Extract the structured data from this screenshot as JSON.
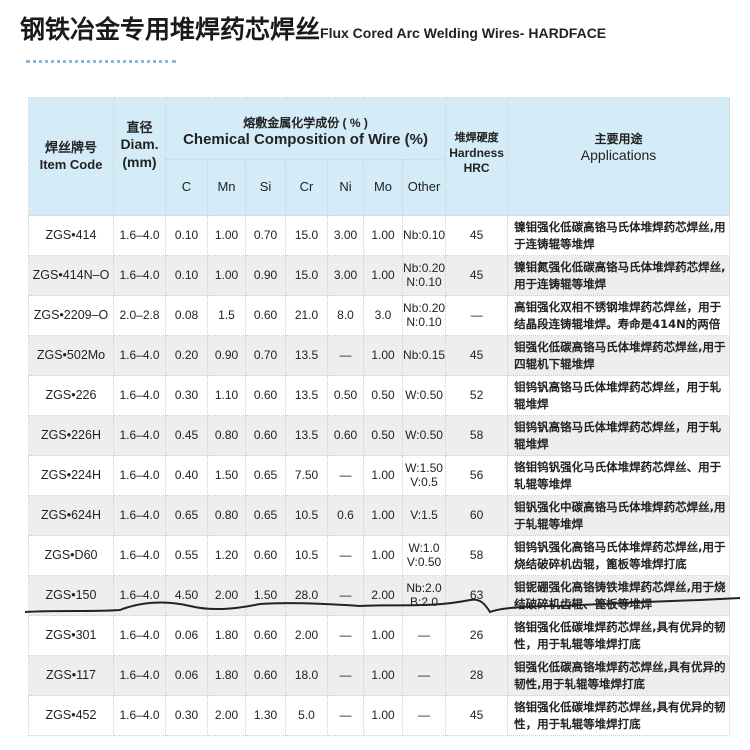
{
  "title": {
    "zh": "钢铁冶金专用堆焊药芯焊丝",
    "en": "Flux Cored Arc Welding Wires- HARDFACE"
  },
  "header": {
    "item_code_zh": "焊丝牌号",
    "item_code_en": "Item Code",
    "diam_zh": "直径",
    "diam_en": "Diam.",
    "diam_unit": "(mm)",
    "comp_zh": "熔敷金属化学成份 ( % )",
    "comp_en": "Chemical Composition of Wire (%)",
    "elements": [
      "C",
      "Mn",
      "Si",
      "Cr",
      "Ni",
      "Mo",
      "Other"
    ],
    "hardness_zh": "堆焊硬度",
    "hardness_en": "Hardness",
    "hardness_unit": "HRC",
    "app_zh": "主要用途",
    "app_en": "Applications"
  },
  "rows": [
    {
      "code": "ZGS•414",
      "diam": "1.6–4.0",
      "comp": [
        "0.10",
        "1.00",
        "0.70",
        "15.0",
        "3.00",
        "1.00",
        "Nb:0.10"
      ],
      "hrc": "45",
      "app": "镍钼强化低碳高铬马氏体堆焊药芯焊丝,用于连铸辊等堆焊"
    },
    {
      "code": "ZGS•414N–O",
      "diam": "1.6–4.0",
      "comp": [
        "0.10",
        "1.00",
        "0.90",
        "15.0",
        "3.00",
        "1.00",
        "Nb:0.20 N:0.10"
      ],
      "hrc": "45",
      "app": "镍钼氮强化低碳高铬马氏体堆焊药芯焊丝,用于连铸辊等堆焊"
    },
    {
      "code": "ZGS•2209–O",
      "diam": "2.0–2.8",
      "comp": [
        "0.08",
        "1.5",
        "0.60",
        "21.0",
        "8.0",
        "3.0",
        "Nb:0.20 N:0.10"
      ],
      "hrc": "—",
      "app": "高钼强化双相不锈钢堆焊药芯焊丝，用于结晶段连铸辊堆焊。寿命是414N的两倍"
    },
    {
      "code": "ZGS•502Mo",
      "diam": "1.6–4.0",
      "comp": [
        "0.20",
        "0.90",
        "0.70",
        "13.5",
        "—",
        "1.00",
        "Nb:0.15"
      ],
      "hrc": "45",
      "app": "钼强化低碳高铬马氏体堆焊药芯焊丝,用于四辊机下辊堆焊"
    },
    {
      "code": "ZGS•226",
      "diam": "1.6–4.0",
      "comp": [
        "0.30",
        "1.10",
        "0.60",
        "13.5",
        "0.50",
        "0.50",
        "W:0.50"
      ],
      "hrc": "52",
      "app": "钼钨钒高铬马氏体堆焊药芯焊丝，用于轧辊堆焊"
    },
    {
      "code": "ZGS•226H",
      "diam": "1.6–4.0",
      "comp": [
        "0.45",
        "0.80",
        "0.60",
        "13.5",
        "0.60",
        "0.50",
        "W:0.50"
      ],
      "hrc": "58",
      "app": "钼钨钒高铬马氏体堆焊药芯焊丝，用于轧辊堆焊"
    },
    {
      "code": "ZGS•224H",
      "diam": "1.6–4.0",
      "comp": [
        "0.40",
        "1.50",
        "0.65",
        "7.50",
        "—",
        "1.00",
        "W:1.50 V:0.5"
      ],
      "hrc": "56",
      "app": "铬钼钨钒强化马氏体堆焊药芯焊丝、用于轧辊等堆焊"
    },
    {
      "code": "ZGS•624H",
      "diam": "1.6–4.0",
      "comp": [
        "0.65",
        "0.80",
        "0.65",
        "10.5",
        "0.6",
        "1.00",
        "V:1.5"
      ],
      "hrc": "60",
      "app": "钼钒强化中碳高铬马氏体堆焊药芯焊丝,用于轧辊等堆焊"
    },
    {
      "code": "ZGS•D60",
      "diam": "1.6–4.0",
      "comp": [
        "0.55",
        "1.20",
        "0.60",
        "10.5",
        "—",
        "1.00",
        "W:1.0 V:0.50"
      ],
      "hrc": "58",
      "app": "钼钨钒强化高铬马氏体堆焊药芯焊丝,用于烧结破碎机齿辊，篦板等堆焊打底"
    },
    {
      "code": "ZGS•150",
      "diam": "1.6–4.0",
      "comp": [
        "4.50",
        "2.00",
        "1.50",
        "28.0",
        "—",
        "2.00",
        "Nb:2.0 B:2.0"
      ],
      "hrc": "63",
      "app": "钼铌硼强化高铬铸铁堆焊药芯焊丝,用于烧结破碎机齿辊、篦板等堆焊"
    },
    {
      "code": "ZGS•301",
      "diam": "1.6–4.0",
      "comp": [
        "0.06",
        "1.80",
        "0.60",
        "2.00",
        "—",
        "1.00",
        "—"
      ],
      "hrc": "26",
      "app": "铬钼强化低碳堆焊药芯焊丝,具有优异的韧性，用于轧辊等堆焊打底"
    },
    {
      "code": "ZGS•117",
      "diam": "1.6–4.0",
      "comp": [
        "0.06",
        "1.80",
        "0.60",
        "18.0",
        "—",
        "1.00",
        "—"
      ],
      "hrc": "28",
      "app": "钼强化低碳高铬堆焊药芯焊丝,具有优异的韧性,用于轧辊等堆焊打底"
    },
    {
      "code": "ZGS•452",
      "diam": "1.6–4.0",
      "comp": [
        "0.30",
        "2.00",
        "1.30",
        "5.0",
        "—",
        "1.00",
        "—"
      ],
      "hrc": "45",
      "app": "铬钼强化低碳堆焊药芯焊丝,具有优异的韧性，用于轧辊等堆焊打底"
    }
  ],
  "colors": {
    "header_bg": "#d4ecf8",
    "alt_row_bg": "#eeeeee"
  }
}
